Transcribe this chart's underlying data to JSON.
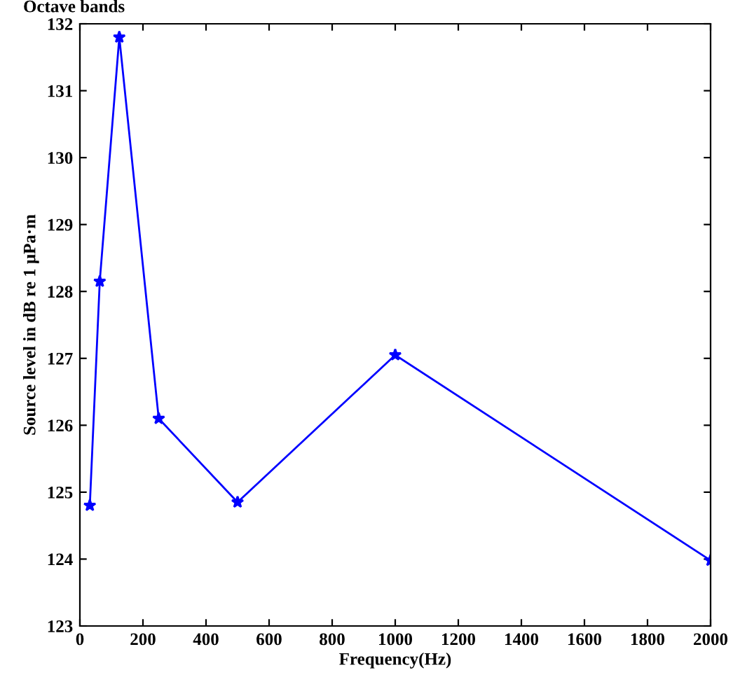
{
  "chart_data": {
    "type": "line",
    "title": "Octave bands",
    "xlabel": "Frequency(Hz)",
    "ylabel": "Source level in dB re 1 μPa·m",
    "x": [
      31.5,
      63,
      125,
      250,
      500,
      1000,
      2000
    ],
    "series": [
      {
        "color": "#0000ff",
        "values": [
          124.8,
          128.15,
          131.8,
          126.1,
          124.85,
          127.05,
          123.98
        ]
      }
    ],
    "xlim": [
      0,
      2000
    ],
    "xticks": [
      0,
      200,
      400,
      600,
      800,
      1000,
      1200,
      1400,
      1600,
      1800,
      2000
    ],
    "ylim": [
      123,
      132
    ],
    "yticks": [
      123,
      124,
      125,
      126,
      127,
      128,
      129,
      130,
      131,
      132
    ],
    "marker": "star",
    "line_style": "solid",
    "grid": false,
    "legend": false
  }
}
